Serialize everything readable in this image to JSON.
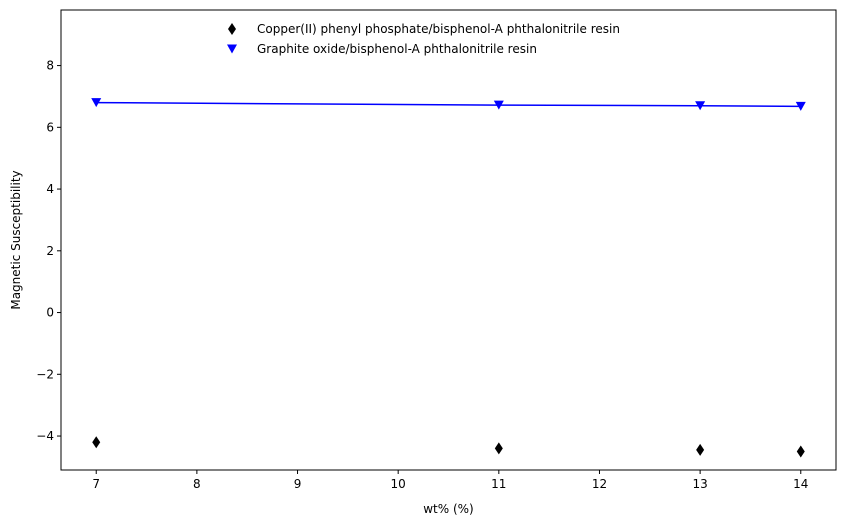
{
  "chart_data": {
    "type": "scatter",
    "title": "",
    "xlabel": "wt% (%)",
    "ylabel": "Magnetic Susceptibility",
    "xlim": [
      6.65,
      14.35
    ],
    "ylim": [
      -5.1,
      9.8
    ],
    "xticks": [
      7,
      8,
      9,
      10,
      11,
      12,
      13,
      14
    ],
    "yticks": [
      -4,
      -2,
      0,
      2,
      4,
      6,
      8
    ],
    "grid": false,
    "legend_position": "top-center",
    "series": [
      {
        "name": "Copper(II) phenyl phosphate/bisphenol-A phthalonitrile resin",
        "marker": "thin-diamond",
        "color": "#000000",
        "fit_line": false,
        "x": [
          7,
          11,
          13,
          14
        ],
        "y": [
          -4.2,
          -4.4,
          -4.45,
          -4.5
        ]
      },
      {
        "name": "Graphite oxide/bisphenol-A phthalonitrile resin",
        "marker": "triangle-down",
        "color": "#0000ff",
        "fit_line": true,
        "x": [
          7,
          11,
          13,
          14
        ],
        "y": [
          6.8,
          6.72,
          6.7,
          6.68
        ]
      }
    ]
  }
}
